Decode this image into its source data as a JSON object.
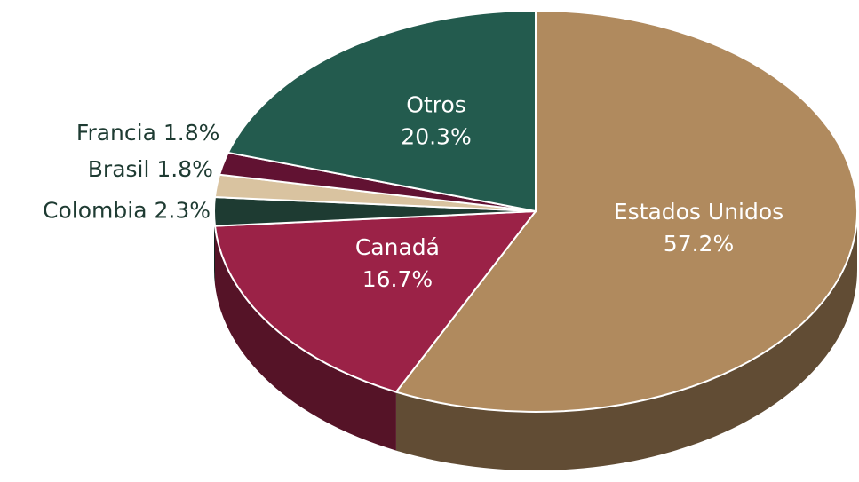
{
  "chart_data": {
    "type": "pie",
    "categories": [
      "Estados Unidos",
      "Canadá",
      "Colombia",
      "Brasil",
      "Francia",
      "Otros"
    ],
    "values": [
      57.2,
      16.7,
      2.3,
      1.8,
      1.8,
      20.3
    ],
    "value_labels": [
      "57.2%",
      "16.7%",
      "2.3%",
      "1.8%",
      "1.8%",
      "20.3%"
    ],
    "colors": [
      "#b08a5e",
      "#9b2247",
      "#1e3b32",
      "#d9c3a0",
      "#611232",
      "#235b4e"
    ]
  }
}
